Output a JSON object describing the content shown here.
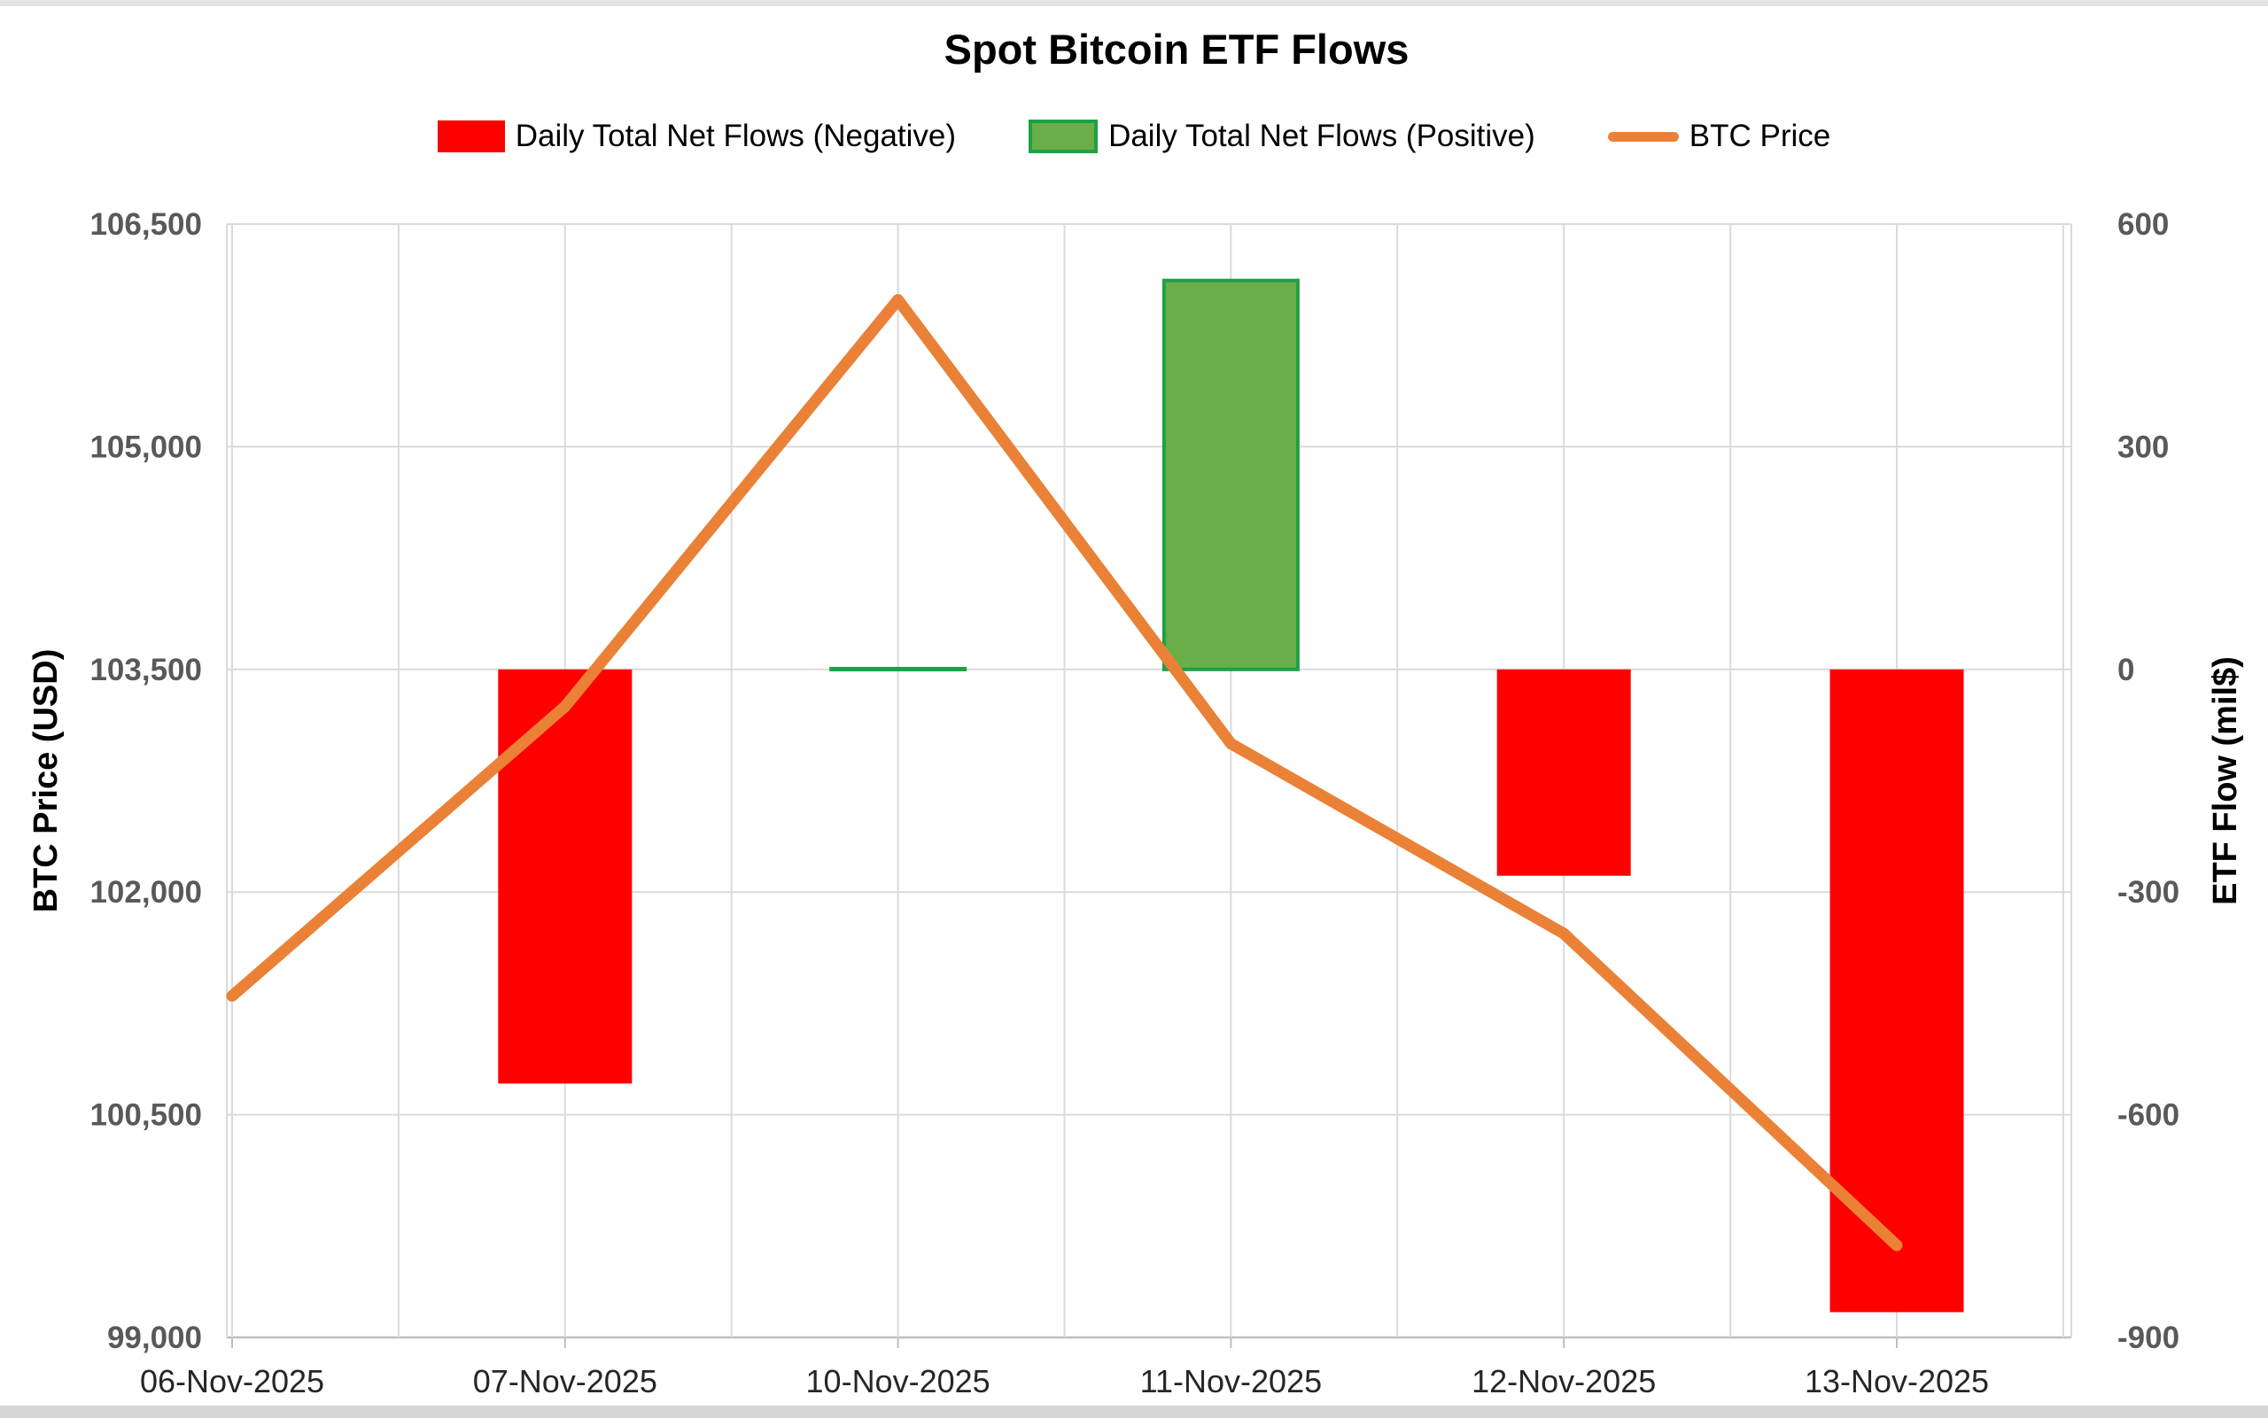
{
  "title": "Spot Bitcoin ETF Flows",
  "legend": {
    "items": [
      {
        "label": "Daily Total Net Flows (Negative)",
        "swatch": "red-bar",
        "color": "#ff0000"
      },
      {
        "label": "Daily Total Net Flows (Positive)",
        "swatch": "green-bar",
        "fill": "#6aae49",
        "border": "#1ea046"
      },
      {
        "label": "BTC Price",
        "swatch": "orange-line",
        "color": "#ea8136"
      }
    ]
  },
  "chart_data": {
    "type": "combo-bar-line",
    "title": "Spot Bitcoin ETF Flows",
    "categories": [
      "06-Nov-2025",
      "07-Nov-2025",
      "10-Nov-2025",
      "11-Nov-2025",
      "12-Nov-2025",
      "13-Nov-2025"
    ],
    "series": [
      {
        "name": "Daily Total Net Flows (Negative)",
        "type": "bar",
        "axis": "right",
        "fill": "#ff0000",
        "stroke": "none",
        "values": [
          null,
          -558,
          null,
          null,
          -278,
          -866
        ]
      },
      {
        "name": "Daily Total Net Flows (Positive)",
        "type": "bar",
        "axis": "right",
        "fill": "#6aae49",
        "stroke": "#1ea046",
        "values": [
          null,
          null,
          1,
          524,
          null,
          null
        ]
      },
      {
        "name": "BTC Price",
        "type": "line",
        "axis": "left",
        "color": "#ea8136",
        "values": [
          101300,
          103250,
          105990,
          103000,
          101720,
          99620
        ]
      }
    ],
    "left_axis": {
      "title": "BTC Price (USD)",
      "min": 99000,
      "max": 106500,
      "tick_values": [
        106500,
        105000,
        103500,
        102000,
        100500,
        99000
      ],
      "tick_labels": [
        "106,500",
        "105,000",
        "103,500",
        "102,000",
        "100,500",
        "99,000"
      ]
    },
    "right_axis": {
      "title": "ETF Flow (mil$)",
      "min": -900,
      "max": 600,
      "tick_values": [
        600,
        300,
        0,
        -300,
        -600,
        -900
      ],
      "tick_labels": [
        "600",
        "300",
        "0",
        "-300",
        "-600",
        "-900"
      ]
    },
    "grid": {
      "show": true,
      "color": "#dadada",
      "axis_line_color": "#bfbfbf",
      "vertical_lines": 12
    },
    "tick_label_color": "#595959",
    "x_label_color": "#262626"
  }
}
